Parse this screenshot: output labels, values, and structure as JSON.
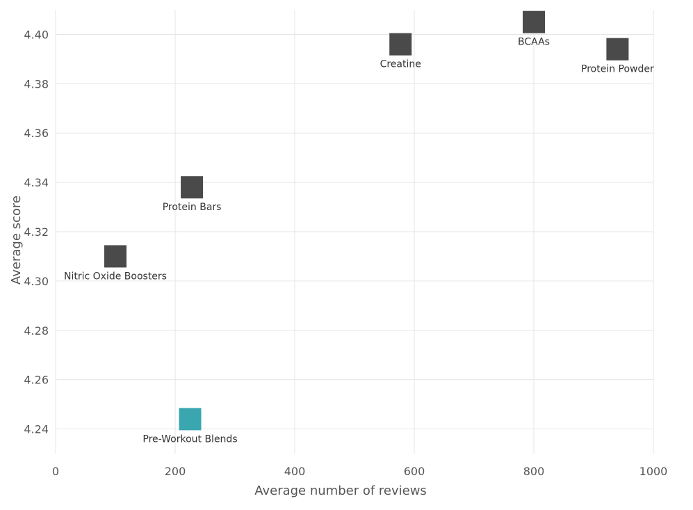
{
  "chart_data": {
    "type": "scatter",
    "title": "",
    "xlabel": "Average number of reviews",
    "ylabel": "Average score",
    "xlim": [
      0,
      1000
    ],
    "ylim": [
      4.23,
      4.41
    ],
    "xticks": [
      "0",
      "200",
      "400",
      "600",
      "800",
      "1000"
    ],
    "yticks": [
      "4.24",
      "4.26",
      "4.28",
      "4.30",
      "4.32",
      "4.34",
      "4.36",
      "4.38",
      "4.40"
    ],
    "grid": true,
    "marker": "square",
    "points": [
      {
        "label": "BCAAs",
        "x": 800,
        "y": 4.405,
        "color": "#4a4a4a"
      },
      {
        "label": "Creatine",
        "x": 577,
        "y": 4.396,
        "color": "#4a4a4a"
      },
      {
        "label": "Protein Powder",
        "x": 940,
        "y": 4.394,
        "color": "#4a4a4a"
      },
      {
        "label": "Protein Bars",
        "x": 228,
        "y": 4.338,
        "color": "#4a4a4a"
      },
      {
        "label": "Nitric Oxide Boosters",
        "x": 100,
        "y": 4.31,
        "color": "#4a4a4a"
      },
      {
        "label": "Pre-Workout Blends",
        "x": 225,
        "y": 4.244,
        "color": "#3aa6b0"
      }
    ]
  }
}
